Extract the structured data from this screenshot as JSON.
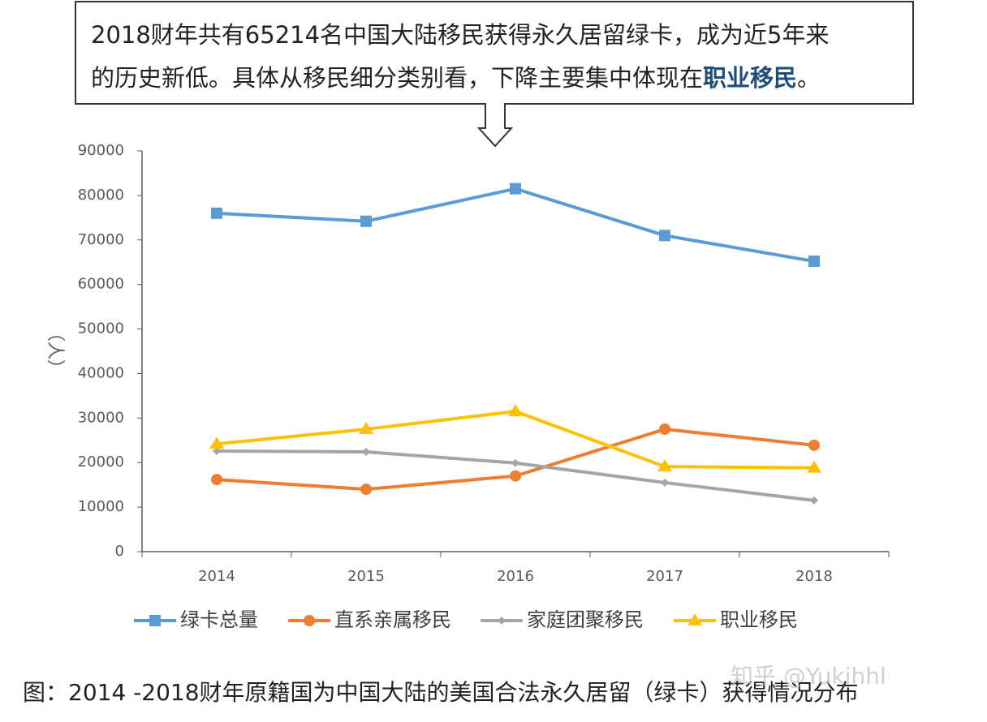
{
  "chart_data": {
    "type": "line",
    "callout": {
      "line1": "2018财年共有65214名中国大陆移民获得永久居留绿卡，成为近5年来",
      "line2": "的历史新低。具体从移民细分类别看，下降主要集中体现在",
      "highlight": "职业移民",
      "end": "。"
    },
    "y_label": "（人）",
    "caption": "图：2014 -2018财年原籍国为中国大陆的美国合法永久居留（绿卡）获得情况分布",
    "watermark": "知乎 @Yukihhl",
    "categories": [
      "2014",
      "2015",
      "2016",
      "2017",
      "2018"
    ],
    "series": [
      {
        "name": "绿卡总量",
        "color": "#5b9bd5",
        "marker": "square",
        "values": [
          76000,
          74200,
          81500,
          71000,
          65214
        ]
      },
      {
        "name": "直系亲属移民",
        "color": "#ed7d31",
        "marker": "circle",
        "values": [
          16200,
          14000,
          17000,
          27500,
          23900
        ]
      },
      {
        "name": "家庭团聚移民",
        "color": "#a5a5a5",
        "marker": "diamond",
        "values": [
          22600,
          22400,
          19900,
          15500,
          11500
        ]
      },
      {
        "name": "职业移民",
        "color": "#ffc000",
        "marker": "triangle",
        "values": [
          24200,
          27500,
          31500,
          19100,
          18800
        ]
      }
    ],
    "ylim": [
      0,
      90000
    ],
    "yticks": [
      0,
      10000,
      20000,
      30000,
      40000,
      50000,
      60000,
      70000,
      80000,
      90000
    ],
    "grid": false
  }
}
